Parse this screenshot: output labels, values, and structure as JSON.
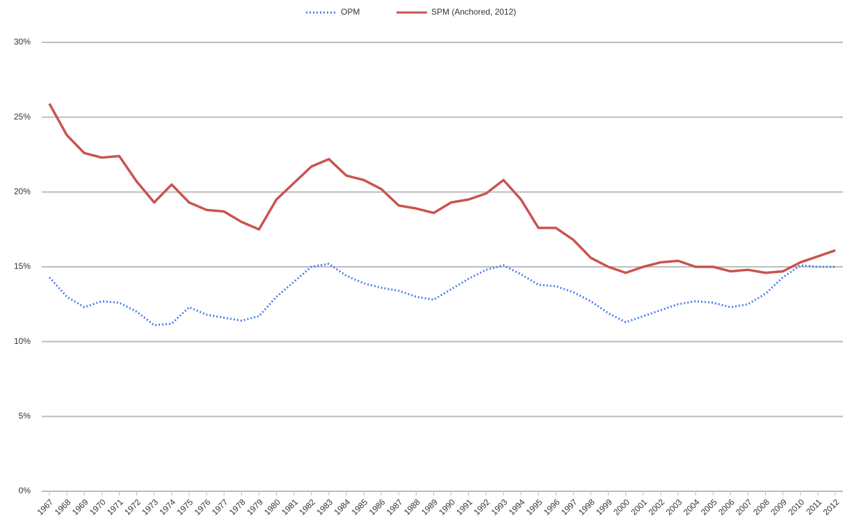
{
  "chart_data": {
    "type": "line",
    "categories": [
      "1967",
      "1968",
      "1969",
      "1970",
      "1971",
      "1972",
      "1973",
      "1974",
      "1975",
      "1976",
      "1977",
      "1978",
      "1979",
      "1980",
      "1981",
      "1982",
      "1983",
      "1984",
      "1985",
      "1986",
      "1987",
      "1988",
      "1989",
      "1990",
      "1991",
      "1992",
      "1993",
      "1994",
      "1995",
      "1996",
      "1997",
      "1998",
      "1999",
      "2000",
      "2001",
      "2002",
      "2003",
      "2004",
      "2005",
      "2006",
      "2007",
      "2008",
      "2009",
      "2010",
      "2011",
      "2012"
    ],
    "series": [
      {
        "name": "OPM",
        "color": "#4a7ff0",
        "dash": true,
        "values": [
          14.3,
          13.0,
          12.3,
          12.7,
          12.6,
          12.0,
          11.1,
          11.2,
          12.3,
          11.8,
          11.6,
          11.4,
          11.7,
          13.0,
          14.0,
          15.0,
          15.2,
          14.4,
          13.9,
          13.6,
          13.4,
          13.0,
          12.8,
          13.5,
          14.2,
          14.8,
          15.1,
          14.5,
          13.8,
          13.7,
          13.3,
          12.7,
          11.9,
          11.3,
          11.7,
          12.1,
          12.5,
          12.7,
          12.6,
          12.3,
          12.5,
          13.2,
          14.3,
          15.1,
          15.0,
          15.0
        ]
      },
      {
        "name": "SPM (Anchored, 2012)",
        "color": "#c9534f",
        "dash": false,
        "values": [
          25.9,
          23.8,
          22.6,
          22.3,
          22.4,
          20.7,
          19.3,
          20.5,
          19.3,
          18.8,
          18.7,
          18.0,
          17.5,
          19.5,
          20.6,
          21.7,
          22.2,
          21.1,
          20.8,
          20.2,
          19.1,
          18.9,
          18.6,
          19.3,
          19.5,
          19.9,
          20.8,
          19.5,
          17.6,
          17.6,
          16.8,
          15.6,
          15.0,
          14.6,
          15.0,
          15.3,
          15.4,
          15.0,
          15.0,
          14.7,
          14.8,
          14.6,
          14.7,
          15.3,
          15.7,
          16.1
        ]
      }
    ],
    "ylim": [
      0,
      30
    ],
    "yticks": [
      {
        "value": 0,
        "label": "0%"
      },
      {
        "value": 5,
        "label": "5%"
      },
      {
        "value": 10,
        "label": "10%"
      },
      {
        "value": 15,
        "label": "15%"
      },
      {
        "value": 20,
        "label": "20%"
      },
      {
        "value": 25,
        "label": "25%"
      },
      {
        "value": 30,
        "label": "30%"
      }
    ],
    "grid": true,
    "legend": "top"
  }
}
